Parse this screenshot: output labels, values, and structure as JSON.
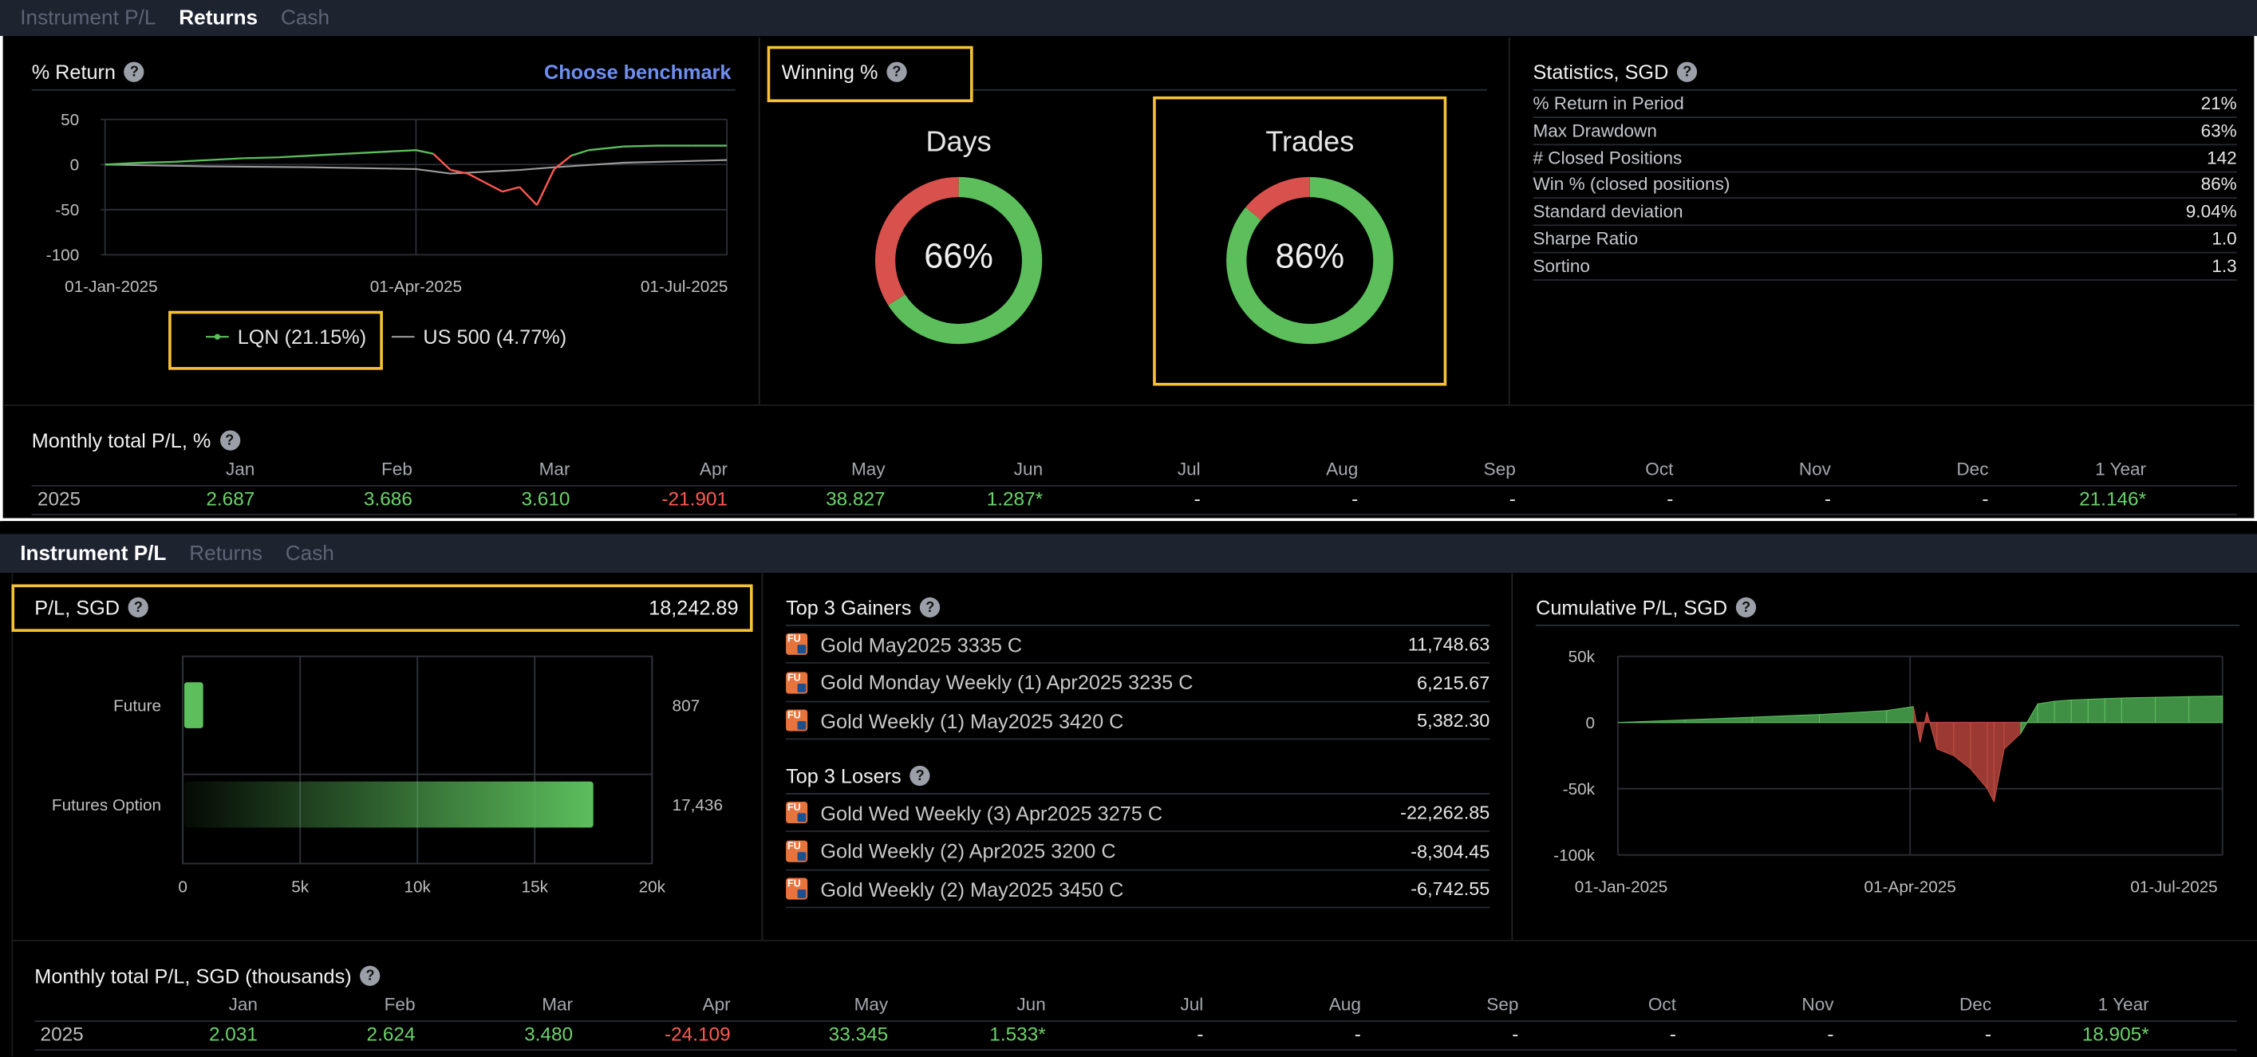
{
  "top": {
    "tabs": [
      "Instrument P/L",
      "Returns",
      "Cash"
    ],
    "active_tab": "Returns",
    "return_chart": {
      "title": "% Return",
      "benchmark_link": "Choose benchmark"
    },
    "winning": {
      "title": "Winning %",
      "days_label": "Days",
      "days_value": "66%",
      "trades_label": "Trades",
      "trades_value": "86%"
    },
    "statistics": {
      "title": "Statistics, SGD",
      "rows": [
        {
          "label": "% Return in Period",
          "value": "21%"
        },
        {
          "label": "Max Drawdown",
          "value": "63%"
        },
        {
          "label": "# Closed Positions",
          "value": "142"
        },
        {
          "label": "Win % (closed positions)",
          "value": "86%"
        },
        {
          "label": "Standard deviation",
          "value": "9.04%"
        },
        {
          "label": "Sharpe Ratio",
          "value": "1.0"
        },
        {
          "label": "Sortino",
          "value": "1.3"
        }
      ]
    },
    "monthly": {
      "title": "Monthly total P/L, %",
      "months": [
        "Jan",
        "Feb",
        "Mar",
        "Apr",
        "May",
        "Jun",
        "Jul",
        "Aug",
        "Sep",
        "Oct",
        "Nov",
        "Dec",
        "1 Year"
      ],
      "year": "2025",
      "values": [
        "2.687",
        "3.686",
        "3.610",
        "-21.901",
        "38.827",
        "1.287*",
        "-",
        "-",
        "-",
        "-",
        "-",
        "-",
        "21.146*"
      ]
    }
  },
  "bottom": {
    "tabs": [
      "Instrument P/L",
      "Returns",
      "Cash"
    ],
    "active_tab": "Instrument P/L",
    "pl": {
      "title": "P/L, SGD",
      "total": "18,242.89"
    },
    "gainers": {
      "title": "Top 3 Gainers",
      "items": [
        {
          "name": "Gold May2025 3335 C",
          "value": "11,748.63"
        },
        {
          "name": "Gold Monday Weekly (1) Apr2025 3235 C",
          "value": "6,215.67"
        },
        {
          "name": "Gold Weekly (1) May2025 3420 C",
          "value": "5,382.30"
        }
      ]
    },
    "losers": {
      "title": "Top 3 Losers",
      "items": [
        {
          "name": "Gold Wed Weekly (3) Apr2025 3275 C",
          "value": "-22,262.85"
        },
        {
          "name": "Gold Weekly (2) Apr2025 3200 C",
          "value": "-8,304.45"
        },
        {
          "name": "Gold Weekly (2) May2025 3450 C",
          "value": "-6,742.55"
        }
      ]
    },
    "cumulative": {
      "title": "Cumulative P/L, SGD"
    },
    "monthly": {
      "title": "Monthly total P/L, SGD (thousands)",
      "months": [
        "Jan",
        "Feb",
        "Mar",
        "Apr",
        "May",
        "Jun",
        "Jul",
        "Aug",
        "Sep",
        "Oct",
        "Nov",
        "Dec",
        "1 Year"
      ],
      "year": "2025",
      "values": [
        "2.031",
        "2.624",
        "3.480",
        "-24.109",
        "33.345",
        "1.533*",
        "-",
        "-",
        "-",
        "-",
        "-",
        "-",
        "18.905*"
      ]
    }
  },
  "icon_badge": "FU",
  "colors": {
    "positive": "#6bd36b",
    "negative": "#ff5a52",
    "highlight": "#f5c235",
    "link": "#6f8ff0",
    "donut_green": "#5cbf5c",
    "donut_red": "#d9514d"
  },
  "chart_data": [
    {
      "type": "line",
      "title": "% Return",
      "x_ticks": [
        "01-Jan-2025",
        "01-Apr-2025",
        "01-Jul-2025"
      ],
      "yticks": [
        50,
        0,
        -50,
        -100
      ],
      "ylim": [
        -100,
        50
      ],
      "series": [
        {
          "name": "LQN (21.15%)",
          "color": "#5cbf5c",
          "x": [
            0,
            10,
            20,
            30,
            40,
            50,
            60,
            70,
            80,
            90,
            95,
            100,
            105,
            110,
            115,
            120,
            125,
            130,
            135,
            140,
            145,
            150,
            160,
            170,
            180
          ],
          "values": [
            0,
            2,
            3,
            5,
            7,
            8,
            10,
            12,
            14,
            16,
            12,
            -6,
            -10,
            -20,
            -30,
            -25,
            -45,
            -5,
            10,
            16,
            18,
            20,
            21,
            21,
            21
          ]
        },
        {
          "name": "US 500 (4.77%)",
          "color": "#9a9a9a",
          "x": [
            0,
            30,
            60,
            90,
            100,
            110,
            120,
            130,
            150,
            180
          ],
          "values": [
            0,
            -2,
            -3,
            -5,
            -10,
            -8,
            -6,
            -3,
            2,
            5
          ]
        }
      ]
    },
    {
      "type": "pie",
      "title": "Days",
      "slices": [
        {
          "label": "win",
          "value": 66
        },
        {
          "label": "loss",
          "value": 34
        }
      ]
    },
    {
      "type": "pie",
      "title": "Trades",
      "slices": [
        {
          "label": "win",
          "value": 86
        },
        {
          "label": "loss",
          "value": 14
        }
      ]
    },
    {
      "type": "bar",
      "title": "P/L, SGD",
      "orientation": "horizontal",
      "categories": [
        "Future",
        "Futures Option"
      ],
      "values": [
        807,
        17436
      ],
      "xlim": [
        0,
        20000
      ],
      "x_ticks": [
        "0",
        "5k",
        "10k",
        "15k",
        "20k"
      ]
    },
    {
      "type": "area",
      "title": "Cumulative P/L, SGD",
      "x_ticks": [
        "01-Jan-2025",
        "01-Apr-2025",
        "01-Jul-2025"
      ],
      "y_ticks": [
        "50k",
        "0",
        "-50k",
        "-100k"
      ],
      "ylim": [
        -100000,
        50000
      ],
      "x": [
        0,
        20,
        40,
        60,
        80,
        88,
        90,
        92,
        95,
        100,
        105,
        110,
        112,
        115,
        120,
        125,
        130,
        135,
        140,
        145,
        150,
        160,
        170,
        180
      ],
      "values": [
        0,
        2000,
        4000,
        6000,
        9000,
        12000,
        -15000,
        8000,
        -20000,
        -25000,
        -35000,
        -50000,
        -60000,
        -20000,
        -8000,
        14000,
        16000,
        17000,
        17500,
        18000,
        18500,
        19000,
        19500,
        20000
      ]
    }
  ]
}
